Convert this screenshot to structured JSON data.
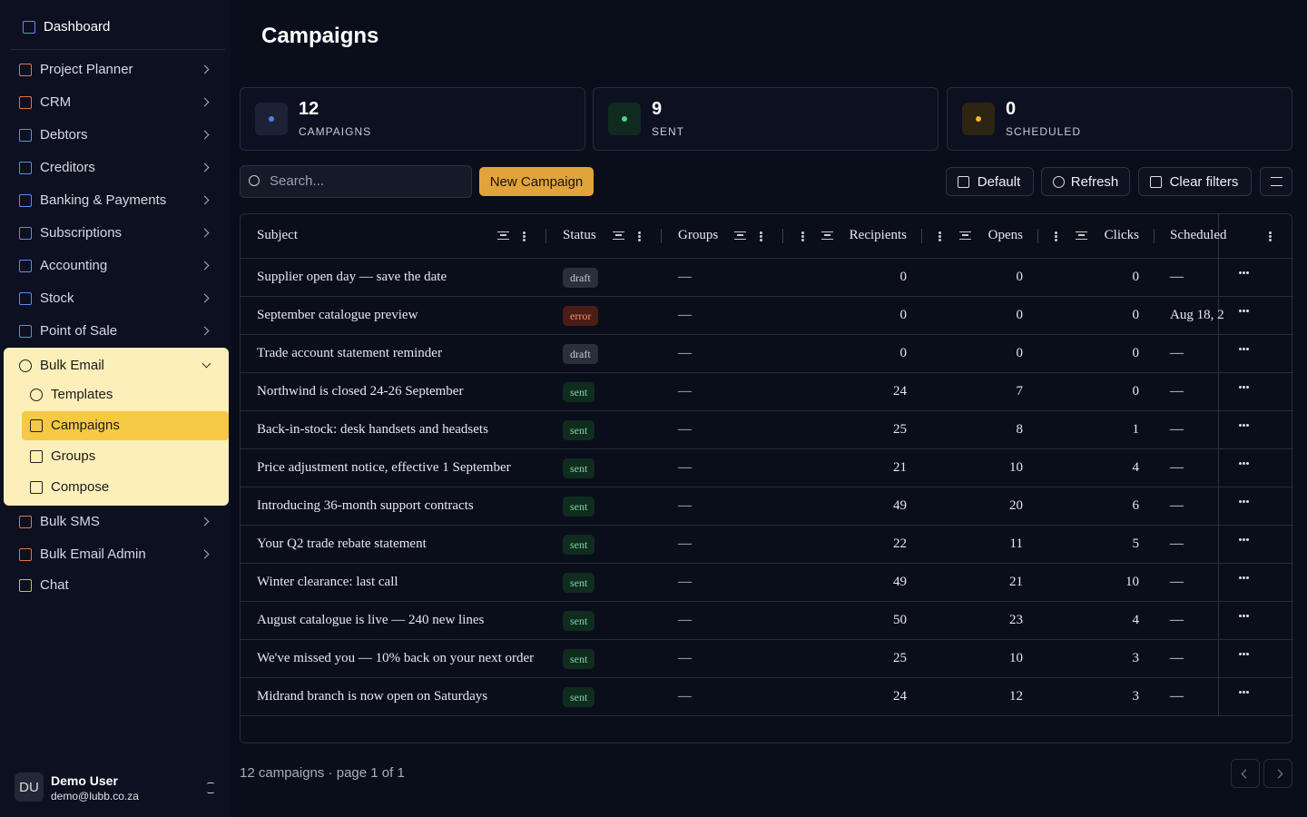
{
  "sidebar": {
    "top": "Dashboard",
    "items": [
      "Project Planner",
      "CRM",
      "Debtors",
      "Creditors",
      "Banking & Payments",
      "Subscriptions",
      "Accounting",
      "Stock",
      "Point of Sale"
    ],
    "group": {
      "label": "Bulk Email",
      "children": [
        "Templates",
        "Campaigns",
        "Groups",
        "Compose"
      ],
      "active": 1
    },
    "after": [
      "Bulk SMS",
      "Bulk Email Admin",
      "Chat"
    ],
    "user": {
      "initials": "DU",
      "name": "Demo User",
      "email": "demo@lubb.co.za"
    }
  },
  "page": {
    "title": "Campaigns"
  },
  "stats": [
    {
      "value": 12,
      "label": "CAMPAIGNS",
      "color": "#4f7df0",
      "bg": "#1c2236"
    },
    {
      "value": 9,
      "label": "SENT",
      "color": "#4fd08a",
      "bg": "#0f2a1e"
    },
    {
      "value": 0,
      "label": "SCHEDULED",
      "color": "#f0b52e",
      "bg": "#2d2414"
    }
  ],
  "toolbar": {
    "search": "Search...",
    "new": "New Campaign",
    "default": "Default",
    "refresh": "Refresh",
    "clear": "Clear filters"
  },
  "table": {
    "columns": [
      "Subject",
      "Status",
      "Groups",
      "Recipients",
      "Opens",
      "Clicks",
      "Scheduled"
    ],
    "rows": [
      [
        "Supplier open day — save the date",
        "draft",
        "—",
        0,
        0,
        0,
        "—"
      ],
      [
        "September catalogue preview",
        "error",
        "—",
        0,
        0,
        0,
        "Aug 18, 2"
      ],
      [
        "Trade account statement reminder",
        "draft",
        "—",
        0,
        0,
        0,
        "—"
      ],
      [
        "Northwind is closed 24-26 September",
        "sent",
        "—",
        24,
        7,
        0,
        "—"
      ],
      [
        "Back-in-stock: desk handsets and headsets",
        "sent",
        "—",
        25,
        8,
        1,
        "—"
      ],
      [
        "Price adjustment notice, effective 1 September",
        "sent",
        "—",
        21,
        10,
        4,
        "—"
      ],
      [
        "Introducing 36-month support contracts",
        "sent",
        "—",
        49,
        20,
        6,
        "—"
      ],
      [
        "Your Q2 trade rebate statement",
        "sent",
        "—",
        22,
        11,
        5,
        "—"
      ],
      [
        "Winter clearance: last call",
        "sent",
        "—",
        49,
        21,
        10,
        "—"
      ],
      [
        "August catalogue is live — 240 new lines",
        "sent",
        "—",
        50,
        23,
        4,
        "—"
      ],
      [
        "We've missed you — 10% back on your next order",
        "sent",
        "—",
        25,
        10,
        3,
        "—"
      ],
      [
        "Midrand branch is now open on Saturdays",
        "sent",
        "—",
        24,
        12,
        3,
        "—"
      ]
    ]
  },
  "footer": {
    "summary": "12 campaigns · page 1 of 1"
  }
}
